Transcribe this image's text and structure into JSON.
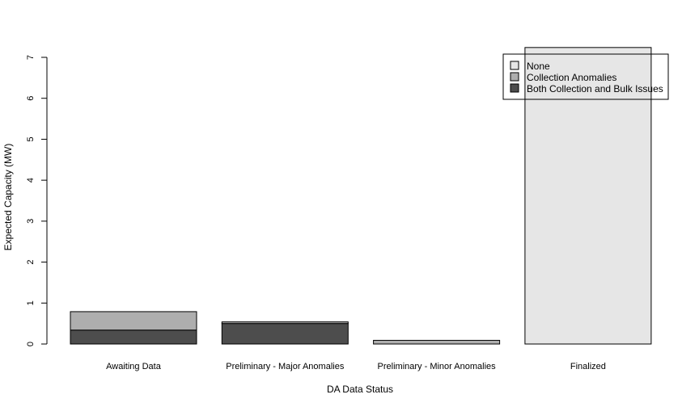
{
  "chart_data": {
    "type": "bar",
    "stacked": true,
    "title": "",
    "xlabel": "DA Data Status",
    "ylabel": "Expected Capacity (MW)",
    "categories": [
      "Awaiting Data",
      "Preliminary - Major Anomalies",
      "Preliminary - Minor Anomalies",
      "Finalized"
    ],
    "ylim": [
      0,
      7
    ],
    "yticks": [
      "0",
      "1",
      "2",
      "3",
      "4",
      "5",
      "6",
      "7"
    ],
    "series": [
      {
        "name": "Both Collection and Bulk Issues",
        "values": [
          0.34,
          0.5,
          0.0,
          0.0
        ],
        "color": "#4d4d4d"
      },
      {
        "name": "Collection Anomalies",
        "values": [
          0.45,
          0.04,
          0.09,
          0.0
        ],
        "color": "#aeaeae"
      },
      {
        "name": "None",
        "values": [
          0.0,
          0.0,
          0.0,
          7.24
        ],
        "color": "#e6e6e6"
      }
    ],
    "legend": {
      "position": "top-right",
      "entries": [
        "None",
        "Collection Anomalies",
        "Both Collection and Bulk Issues"
      ],
      "colors": [
        "#e6e6e6",
        "#aeaeae",
        "#4d4d4d"
      ]
    },
    "grid": false
  }
}
